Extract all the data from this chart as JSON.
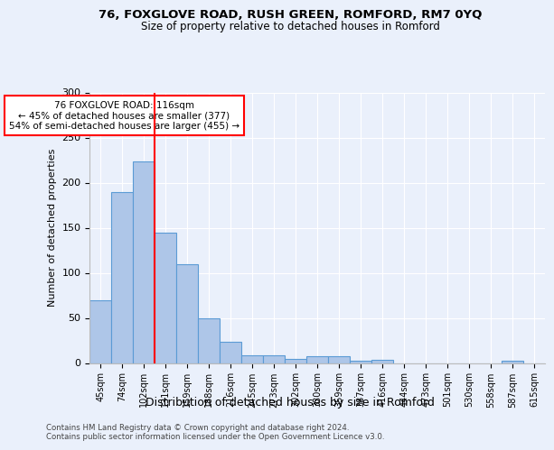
{
  "title1": "76, FOXGLOVE ROAD, RUSH GREEN, ROMFORD, RM7 0YQ",
  "title2": "Size of property relative to detached houses in Romford",
  "xlabel": "Distribution of detached houses by size in Romford",
  "ylabel": "Number of detached properties",
  "categories": [
    "45sqm",
    "74sqm",
    "102sqm",
    "131sqm",
    "159sqm",
    "188sqm",
    "216sqm",
    "245sqm",
    "273sqm",
    "302sqm",
    "330sqm",
    "359sqm",
    "387sqm",
    "416sqm",
    "444sqm",
    "473sqm",
    "501sqm",
    "530sqm",
    "558sqm",
    "587sqm",
    "615sqm"
  ],
  "values": [
    70,
    190,
    224,
    145,
    110,
    50,
    24,
    9,
    9,
    5,
    8,
    8,
    3,
    4,
    0,
    0,
    0,
    0,
    0,
    3,
    0
  ],
  "bar_color": "#aec6e8",
  "bar_edge_color": "#5b9bd5",
  "vline_x_index": 2,
  "vline_color": "red",
  "annotation_text": "76 FOXGLOVE ROAD: 116sqm\n← 45% of detached houses are smaller (377)\n54% of semi-detached houses are larger (455) →",
  "annotation_box_color": "white",
  "annotation_box_edge_color": "red",
  "ylim": [
    0,
    300
  ],
  "yticks": [
    0,
    50,
    100,
    150,
    200,
    250,
    300
  ],
  "footer1": "Contains HM Land Registry data © Crown copyright and database right 2024.",
  "footer2": "Contains public sector information licensed under the Open Government Licence v3.0.",
  "bg_color": "#eaf0fb",
  "plot_bg_color": "#eaf0fb"
}
